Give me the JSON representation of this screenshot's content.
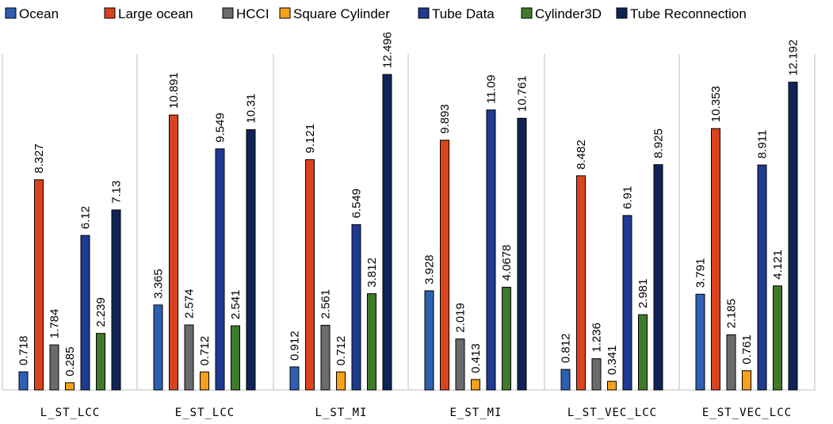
{
  "chart_data": {
    "type": "bar",
    "categories": [
      "L_ST_LCC",
      "E_ST_LCC",
      "L_ST_MI",
      "E_ST_MI",
      "L_ST_VEC_LCC",
      "E_ST_VEC_LCC"
    ],
    "series": [
      {
        "name": "Ocean",
        "color": "#2e5fb3",
        "values": [
          0.718,
          3.365,
          0.912,
          3.928,
          0.812,
          3.791
        ],
        "labels": [
          "0.718",
          "3.365",
          "0.912",
          "3.928",
          "0.812",
          "3.791"
        ]
      },
      {
        "name": "Large ocean",
        "color": "#d9441f",
        "values": [
          8.327,
          10.891,
          9.121,
          9.893,
          8.482,
          10.353
        ],
        "labels": [
          "8.327",
          "10.891",
          "9.121",
          "9.893",
          "8.482",
          "10.353"
        ]
      },
      {
        "name": "HCCI",
        "color": "#6b6b6b",
        "values": [
          1.784,
          2.574,
          2.561,
          2.019,
          1.236,
          2.185
        ],
        "labels": [
          "1.784",
          "2.574",
          "2.561",
          "2.019",
          "1.236",
          "2.185"
        ]
      },
      {
        "name": "Square Cylinder",
        "color": "#f5a11c",
        "values": [
          0.285,
          0.712,
          0.712,
          0.413,
          0.341,
          0.761
        ],
        "labels": [
          "0.285",
          "0.712",
          "0.712",
          "0.413",
          "0.341",
          "0.761"
        ]
      },
      {
        "name": "Tube Data",
        "color": "#1f3a93",
        "values": [
          6.12,
          9.549,
          6.549,
          11.09,
          6.91,
          8.911
        ],
        "labels": [
          "6.12",
          "9.549",
          "6.549",
          "11.09",
          "6.91",
          "8.911"
        ]
      },
      {
        "name": "Cylinder3D",
        "color": "#3f7a2c",
        "values": [
          2.239,
          2.541,
          3.812,
          4.0678,
          2.981,
          4.121
        ],
        "labels": [
          "2.239",
          "2.541",
          "3.812",
          "4.0678",
          "2.981",
          "4.121"
        ]
      },
      {
        "name": "Tube Reconnection",
        "color": "#0f2456",
        "values": [
          7.13,
          10.31,
          12.496,
          10.761,
          8.925,
          12.192
        ],
        "labels": [
          "7.13",
          "10.31",
          "12.496",
          "10.761",
          "8.925",
          "12.192"
        ]
      }
    ],
    "ylim": [
      0,
      13.5
    ],
    "legend_position": "top",
    "grid": false
  }
}
